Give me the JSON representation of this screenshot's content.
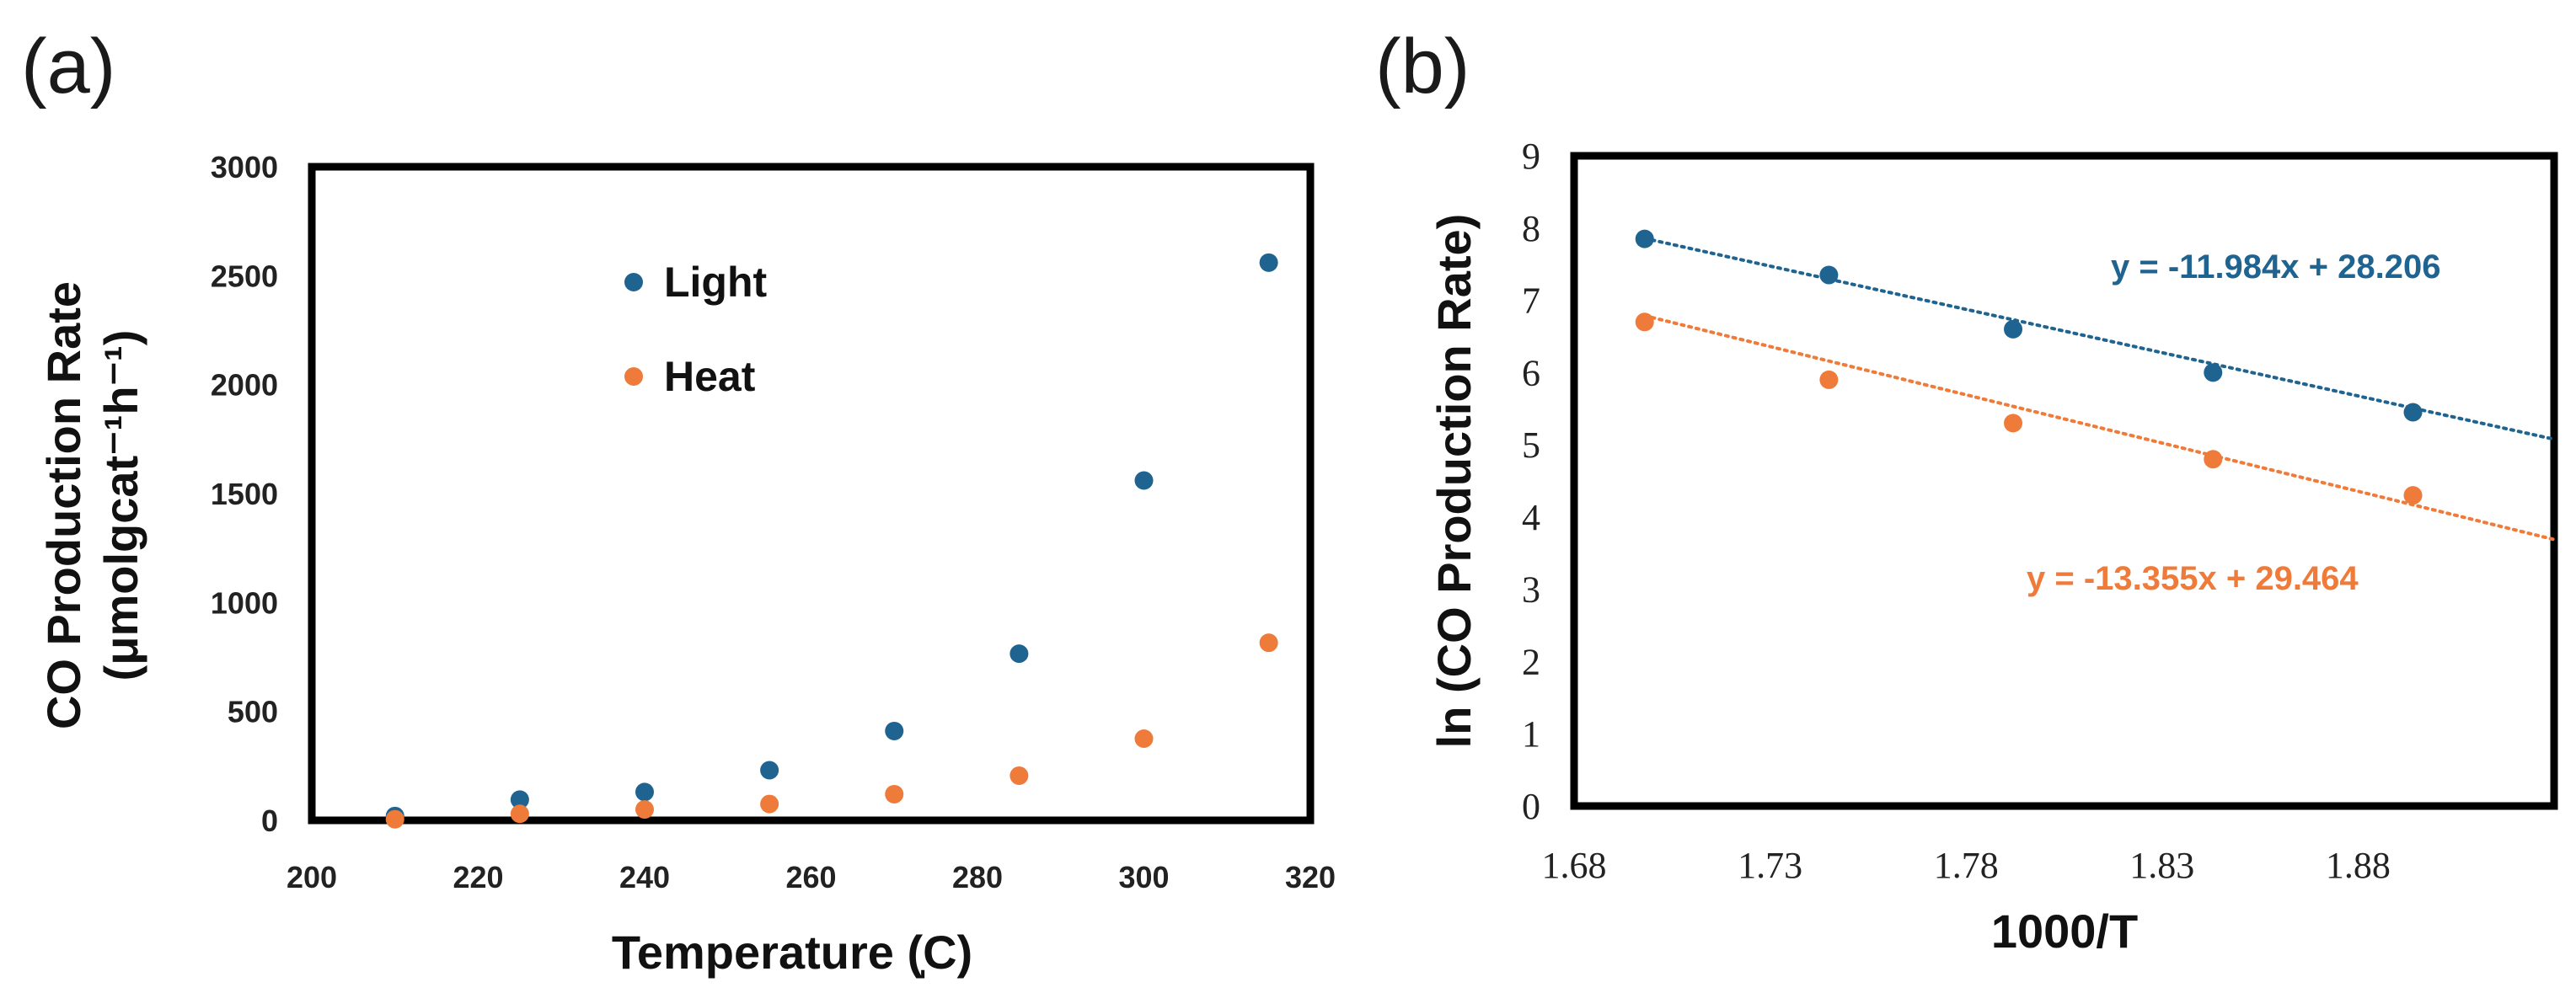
{
  "chart_data": [
    {
      "type": "scatter",
      "panel_label": "(a)",
      "xlabel": "Temperature (̩C)",
      "ylabel_line1": "CO Production Rate",
      "ylabel_line2": "(μmolgcat⁻¹h⁻¹)",
      "xlim": [
        200,
        320
      ],
      "ylim": [
        0,
        3000
      ],
      "xticks": [
        "200",
        "220",
        "240",
        "260",
        "280",
        "300",
        "320"
      ],
      "yticks": [
        "0",
        "500",
        "1000",
        "1500",
        "2000",
        "2500",
        "3000"
      ],
      "legend_position": "top-center",
      "series": [
        {
          "name": "Light",
          "color": "#1f6391",
          "x": [
            210,
            225,
            240,
            255,
            270,
            285,
            300,
            315
          ],
          "y": [
            20,
            95,
            130,
            230,
            410,
            765,
            1560,
            2560
          ]
        },
        {
          "name": "Heat",
          "color": "#ef7b3a",
          "x": [
            210,
            225,
            240,
            255,
            270,
            285,
            300,
            315
          ],
          "y": [
            5,
            30,
            50,
            75,
            120,
            205,
            375,
            815
          ]
        }
      ]
    },
    {
      "type": "scatter",
      "panel_label": "(b)",
      "xlabel": "1000/T",
      "ylabel": "ln (CO Production Rate)",
      "xlim": [
        1.68,
        1.93
      ],
      "ylim": [
        0,
        9
      ],
      "xticks": [
        "1.68",
        "1.73",
        "1.78",
        "1.83",
        "1.88"
      ],
      "yticks": [
        "0",
        "1",
        "2",
        "3",
        "4",
        "5",
        "6",
        "7",
        "8",
        "9"
      ],
      "grid": false,
      "series": [
        {
          "name": "Light",
          "color": "#1f6391",
          "x": [
            1.698,
            1.745,
            1.792,
            1.843,
            1.894
          ],
          "y": [
            7.85,
            7.35,
            6.6,
            6.0,
            5.45
          ],
          "trendline": {
            "slope": -11.984,
            "intercept": 28.206,
            "x_range": [
              1.698,
              1.93
            ]
          },
          "equation": "y = -11.984x + 28.206"
        },
        {
          "name": "Heat",
          "color": "#ef7b3a",
          "x": [
            1.698,
            1.745,
            1.792,
            1.843,
            1.894
          ],
          "y": [
            6.7,
            5.9,
            5.3,
            4.8,
            4.3
          ],
          "trendline": {
            "slope": -13.355,
            "intercept": 29.464,
            "x_range": [
              1.698,
              1.93
            ]
          },
          "equation": "y = -13.355x + 29.464"
        }
      ]
    }
  ]
}
